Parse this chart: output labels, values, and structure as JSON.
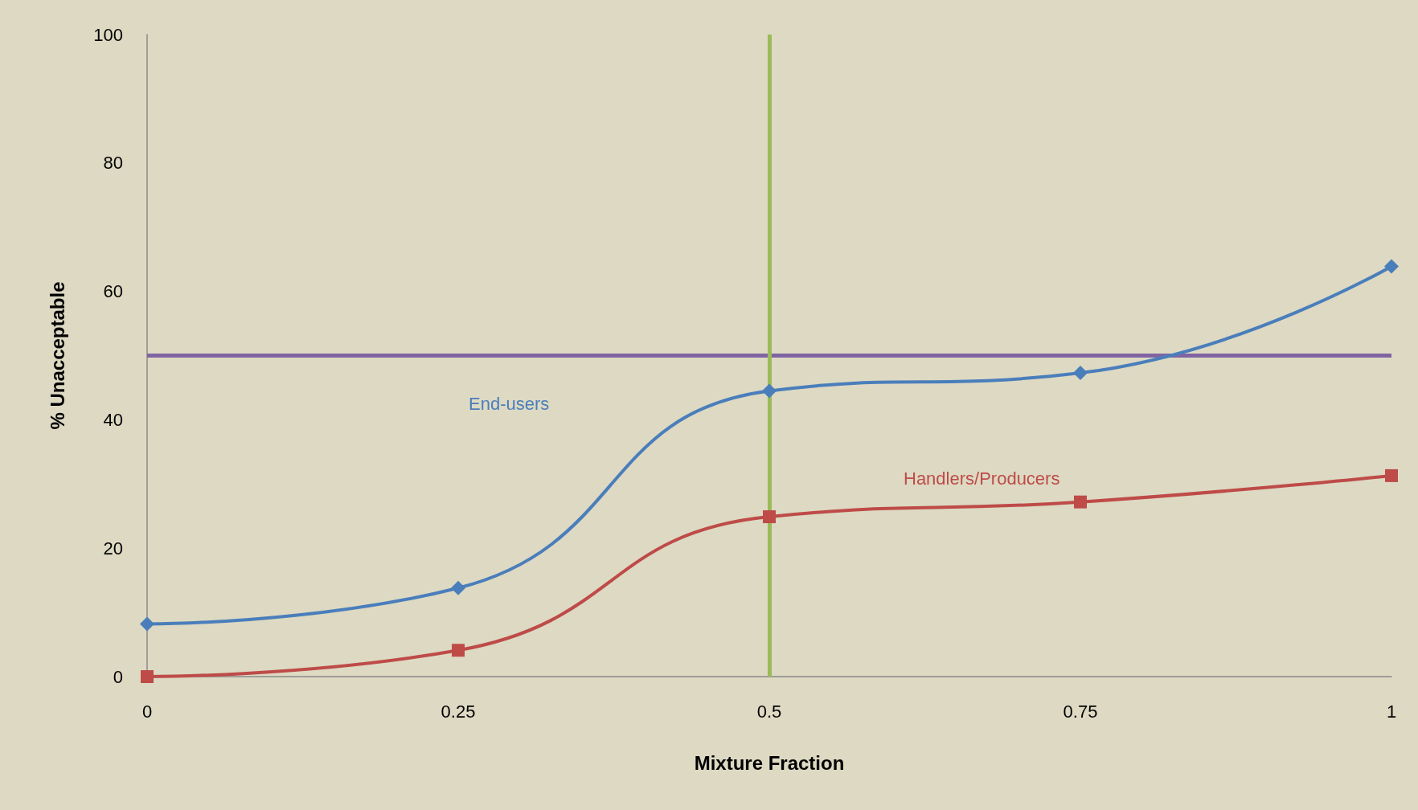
{
  "chart_data": {
    "type": "line",
    "xlabel": "Mixture Fraction",
    "ylabel": "% Unacceptable",
    "x": [
      0,
      0.25,
      0.5,
      0.75,
      1
    ],
    "series": [
      {
        "name": "End-users",
        "color": "#4a7ebb",
        "values": [
          8.2,
          13.8,
          44.5,
          47.3,
          63.9
        ],
        "marker": "diamond"
      },
      {
        "name": "Handlers/Producers",
        "color": "#be4b48",
        "values": [
          0,
          4.1,
          24.9,
          27.2,
          31.3
        ],
        "marker": "square"
      }
    ],
    "xlim": [
      0,
      1
    ],
    "xticks": [
      0,
      0.25,
      0.5,
      0.75,
      1
    ],
    "ylim": [
      0,
      100
    ],
    "yticks": [
      0,
      20,
      40,
      60,
      80,
      100
    ],
    "grid": false,
    "legend": false,
    "ref_lines": [
      {
        "axis": "y",
        "value": 50,
        "color": "#8064a2"
      },
      {
        "axis": "x",
        "value": 0.5,
        "color": "#9bbb59"
      }
    ]
  }
}
